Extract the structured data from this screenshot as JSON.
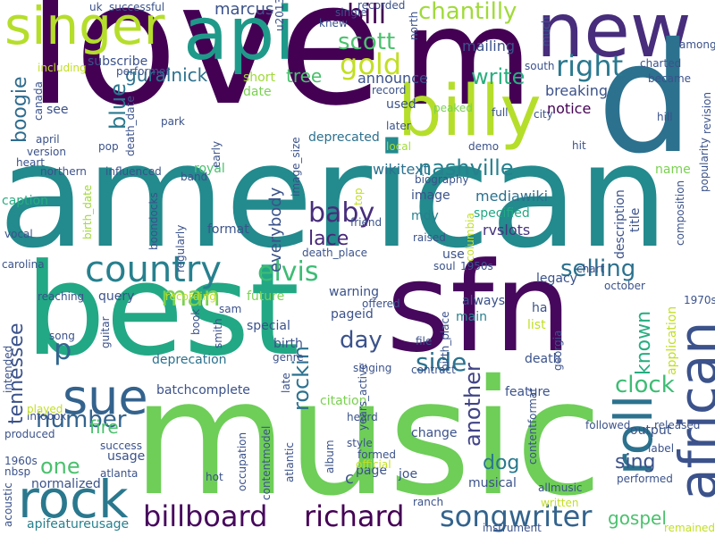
{
  "words": [
    {
      "text": "love",
      "color": "#440154"
    },
    {
      "text": "american",
      "color": "#238a8d"
    },
    {
      "text": "music",
      "color": "#6ece58"
    },
    {
      "text": "best",
      "color": "#22a884"
    },
    {
      "text": "sfn",
      "color": "#46085c"
    },
    {
      "text": "m",
      "color": "#440154"
    },
    {
      "text": "new",
      "color": "#472d7b"
    },
    {
      "text": "api",
      "color": "#1f9a8a"
    },
    {
      "text": "d",
      "color": "#2c718e"
    },
    {
      "text": "billy",
      "color": "#b5de2b"
    },
    {
      "text": "singer",
      "color": "#b5de2b"
    },
    {
      "text": "african",
      "color": "#3b528b"
    },
    {
      "text": "roll",
      "color": "#2c728e"
    },
    {
      "text": "rock",
      "color": "#2a788e"
    },
    {
      "text": "sue",
      "color": "#33638d"
    },
    {
      "text": "country",
      "color": "#27808e"
    },
    {
      "text": "songwriter",
      "color": "#33638d"
    },
    {
      "text": "billboard",
      "color": "#46085c"
    },
    {
      "text": "richard",
      "color": "#440154"
    },
    {
      "text": "gold",
      "color": "#c2df23"
    },
    {
      "text": "right",
      "color": "#2a788e"
    },
    {
      "text": "scott",
      "color": "#4ac16d"
    },
    {
      "text": "bill",
      "color": "#440154"
    },
    {
      "text": "chantilly",
      "color": "#a0da39"
    },
    {
      "text": "elvis",
      "color": "#3dbc74"
    },
    {
      "text": "man",
      "color": "#7ad151"
    },
    {
      "text": "baby",
      "color": "#472d7b"
    },
    {
      "text": "selling",
      "color": "#2c718e"
    },
    {
      "text": "nashville",
      "color": "#27808e"
    },
    {
      "text": "clock",
      "color": "#3dbc74"
    },
    {
      "text": "side",
      "color": "#2c718e"
    },
    {
      "text": "day",
      "color": "#3b528b"
    },
    {
      "text": "number",
      "color": "#33638d"
    },
    {
      "text": "one",
      "color": "#4ac16d"
    },
    {
      "text": "p",
      "color": "#31668e"
    },
    {
      "text": "blue",
      "color": "#2a788e"
    },
    {
      "text": "boogie",
      "color": "#2f6c8e"
    },
    {
      "text": "tennessee",
      "color": "#3b528b"
    },
    {
      "text": "known",
      "color": "#27ad81"
    },
    {
      "text": "another",
      "color": "#414487"
    },
    {
      "text": "rockin",
      "color": "#2c718e"
    },
    {
      "text": "write",
      "color": "#29af7f"
    },
    {
      "text": "gospel",
      "color": "#4ac16d"
    },
    {
      "text": "sing",
      "color": "#3b528b"
    },
    {
      "text": "dog",
      "color": "#2a788e"
    },
    {
      "text": "fire",
      "color": "#4ac16d"
    },
    {
      "text": "lace",
      "color": "#482878"
    },
    {
      "text": "tree",
      "color": "#4ac16d"
    },
    {
      "text": "guralnick",
      "color": "#2c718e"
    },
    {
      "text": "marcus",
      "color": "#3b528b"
    },
    {
      "text": "subscribe",
      "color": "#3b528b"
    },
    {
      "text": "everybody",
      "color": "#3b528b"
    },
    {
      "text": "mailing",
      "color": "#3b528b"
    },
    {
      "text": "breaking",
      "color": "#3b528b"
    },
    {
      "text": "notice",
      "color": "#440154"
    },
    {
      "text": "announce",
      "color": "#3b528b"
    },
    {
      "text": "deprecated",
      "color": "#2c718e"
    },
    {
      "text": "wikitext",
      "color": "#2c718e"
    },
    {
      "text": "mediawiki",
      "color": "#2c718e"
    },
    {
      "text": "image",
      "color": "#3b528b"
    },
    {
      "text": "mdy",
      "color": "#27808e"
    },
    {
      "text": "specified",
      "color": "#22a884"
    },
    {
      "text": "rvslots",
      "color": "#46337e"
    },
    {
      "text": "royal",
      "color": "#4ac16d"
    },
    {
      "text": "format",
      "color": "#3b528b"
    },
    {
      "text": "caption",
      "color": "#27ad81"
    },
    {
      "text": "warning",
      "color": "#3b528b"
    },
    {
      "text": "query",
      "color": "#3b528b"
    },
    {
      "text": "future",
      "color": "#7ad151"
    },
    {
      "text": "pageid",
      "color": "#3b528b"
    },
    {
      "text": "special",
      "color": "#3b528b"
    },
    {
      "text": "birth",
      "color": "#3b528b"
    },
    {
      "text": "deprecation",
      "color": "#2c718e"
    },
    {
      "text": "batchcomplete",
      "color": "#3b528b"
    },
    {
      "text": "legacy",
      "color": "#3b528b"
    },
    {
      "text": "main",
      "color": "#27808e"
    },
    {
      "text": "list",
      "color": "#c2df23"
    },
    {
      "text": "ha",
      "color": "#3b528b"
    },
    {
      "text": "always",
      "color": "#3b528b"
    },
    {
      "text": "use",
      "color": "#3b528b"
    },
    {
      "text": "citation",
      "color": "#7ad151"
    },
    {
      "text": "feature",
      "color": "#3b528b"
    },
    {
      "text": "change",
      "color": "#3b528b"
    },
    {
      "text": "page",
      "color": "#3b528b"
    },
    {
      "text": "joe",
      "color": "#3b528b"
    },
    {
      "text": "musical",
      "color": "#3b528b"
    },
    {
      "text": "output",
      "color": "#3b528b"
    },
    {
      "text": "title",
      "color": "#3b528b"
    },
    {
      "text": "name",
      "color": "#7ad151"
    },
    {
      "text": "description",
      "color": "#3b528b"
    },
    {
      "text": "application",
      "color": "#c2df23"
    },
    {
      "text": "death",
      "color": "#3b528b"
    },
    {
      "text": "file",
      "color": "#3b528b"
    },
    {
      "text": "normalized",
      "color": "#3b528b"
    },
    {
      "text": "usage",
      "color": "#3b528b"
    },
    {
      "text": "apifeatureusage",
      "color": "#27808e"
    },
    {
      "text": "infobox",
      "color": "#3b528b"
    },
    {
      "text": "contentmodel",
      "color": "#3b528b"
    },
    {
      "text": "contentformat",
      "color": "#3b528b"
    },
    {
      "text": "occupation",
      "color": "#3b528b"
    },
    {
      "text": "c",
      "color": "#3b528b"
    },
    {
      "text": "see",
      "color": "#3b528b"
    },
    {
      "text": "used",
      "color": "#3b528b"
    },
    {
      "text": "date",
      "color": "#7ad151"
    },
    {
      "text": "short",
      "color": "#a0da39"
    },
    {
      "text": "death_date",
      "color": "#3b528b"
    },
    {
      "text": "birth_date",
      "color": "#a0da39"
    },
    {
      "text": "birth_place",
      "color": "#3b528b"
    },
    {
      "text": "image_size",
      "color": "#3b528b"
    },
    {
      "text": "later",
      "color": "#3b528b"
    },
    {
      "text": "peaked",
      "color": "#7ad151"
    },
    {
      "text": "full",
      "color": "#3b528b"
    },
    {
      "text": "city",
      "color": "#3b528b"
    },
    {
      "text": "hill",
      "color": "#3b528b"
    },
    {
      "text": "revision",
      "color": "#3b528b"
    },
    {
      "text": "popularity",
      "color": "#3b528b"
    },
    {
      "text": "composition",
      "color": "#3b528b"
    },
    {
      "text": "charted",
      "color": "#3b528b"
    },
    {
      "text": "became",
      "color": "#3b528b"
    },
    {
      "text": "among",
      "color": "#3b528b"
    },
    {
      "text": "south",
      "color": "#3b528b"
    },
    {
      "text": "much",
      "color": "#3b528b"
    },
    {
      "text": "north",
      "color": "#3b528b"
    },
    {
      "text": "recorded",
      "color": "#3b528b"
    },
    {
      "text": "single",
      "color": "#3b528b"
    },
    {
      "text": "knew",
      "color": "#3b528b"
    },
    {
      "text": "u2013",
      "color": "#3b528b"
    },
    {
      "text": "uk",
      "color": "#3b528b"
    },
    {
      "text": "successful",
      "color": "#3b528b"
    },
    {
      "text": "performer",
      "color": "#3b528b"
    },
    {
      "text": "including",
      "color": "#c2df23"
    },
    {
      "text": "canada",
      "color": "#3b528b"
    },
    {
      "text": "record",
      "color": "#3b528b"
    },
    {
      "text": "april",
      "color": "#3b528b"
    },
    {
      "text": "version",
      "color": "#3b528b"
    },
    {
      "text": "heart",
      "color": "#3b528b"
    },
    {
      "text": "pop",
      "color": "#3b528b"
    },
    {
      "text": "park",
      "color": "#3b528b"
    },
    {
      "text": "early",
      "color": "#3b528b"
    },
    {
      "text": "band",
      "color": "#3b528b"
    },
    {
      "text": "influenced",
      "color": "#3b528b"
    },
    {
      "text": "northern",
      "color": "#3b528b"
    },
    {
      "text": "local",
      "color": "#a0da39"
    },
    {
      "text": "demo",
      "color": "#3b528b"
    },
    {
      "text": "hit",
      "color": "#3b528b"
    },
    {
      "text": "top",
      "color": "#c2df23"
    },
    {
      "text": "friend",
      "color": "#3b528b"
    },
    {
      "text": "biography",
      "color": "#3b528b"
    },
    {
      "text": "boondocks",
      "color": "#3b528b"
    },
    {
      "text": "regularly",
      "color": "#3b528b"
    },
    {
      "text": "vocal",
      "color": "#3b528b"
    },
    {
      "text": "columbia",
      "color": "#c2df23"
    },
    {
      "text": "raised",
      "color": "#3b528b"
    },
    {
      "text": "death_place",
      "color": "#3b528b"
    },
    {
      "text": "1950s",
      "color": "#3b528b"
    },
    {
      "text": "soul",
      "color": "#3b528b"
    },
    {
      "text": "chart",
      "color": "#3b528b"
    },
    {
      "text": "october",
      "color": "#3b528b"
    },
    {
      "text": "1970s",
      "color": "#3b528b"
    },
    {
      "text": "carolina",
      "color": "#3b528b"
    },
    {
      "text": "reaching",
      "color": "#3b528b"
    },
    {
      "text": "recording",
      "color": "#c2df23"
    },
    {
      "text": "sam",
      "color": "#3b528b"
    },
    {
      "text": "book",
      "color": "#3b528b"
    },
    {
      "text": "smith",
      "color": "#3b528b"
    },
    {
      "text": "offered",
      "color": "#3b528b"
    },
    {
      "text": "song",
      "color": "#3b528b"
    },
    {
      "text": "guitar",
      "color": "#3b528b"
    },
    {
      "text": "genre",
      "color": "#3b528b"
    },
    {
      "text": "late",
      "color": "#3b528b"
    },
    {
      "text": "singing",
      "color": "#3b528b"
    },
    {
      "text": "contract",
      "color": "#3b528b"
    },
    {
      "text": "georgia",
      "color": "#3b528b"
    },
    {
      "text": "years_active",
      "color": "#3b528b"
    },
    {
      "text": "intended",
      "color": "#3b528b"
    },
    {
      "text": "played",
      "color": "#c2df23"
    },
    {
      "text": "produced",
      "color": "#3b528b"
    },
    {
      "text": "heard",
      "color": "#3b528b"
    },
    {
      "text": "followed",
      "color": "#3b528b"
    },
    {
      "text": "released",
      "color": "#3b528b"
    },
    {
      "text": "success",
      "color": "#3b528b"
    },
    {
      "text": "1960s",
      "color": "#3b528b"
    },
    {
      "text": "nbsp",
      "color": "#3b528b"
    },
    {
      "text": "atlanta",
      "color": "#3b528b"
    },
    {
      "text": "hot",
      "color": "#3b528b"
    },
    {
      "text": "style",
      "color": "#3b528b"
    },
    {
      "text": "formed",
      "color": "#3b528b"
    },
    {
      "text": "official",
      "color": "#c2df23"
    },
    {
      "text": "album",
      "color": "#3b528b"
    },
    {
      "text": "atlantic",
      "color": "#3b528b"
    },
    {
      "text": "label",
      "color": "#3b528b"
    },
    {
      "text": "performed",
      "color": "#3b528b"
    },
    {
      "text": "allmusic",
      "color": "#3b528b"
    },
    {
      "text": "written",
      "color": "#c2df23"
    },
    {
      "text": "acoustic",
      "color": "#3b528b"
    },
    {
      "text": "ranch",
      "color": "#3b528b"
    },
    {
      "text": "instrument",
      "color": "#3b528b"
    },
    {
      "text": "remained",
      "color": "#c2df23"
    }
  ]
}
